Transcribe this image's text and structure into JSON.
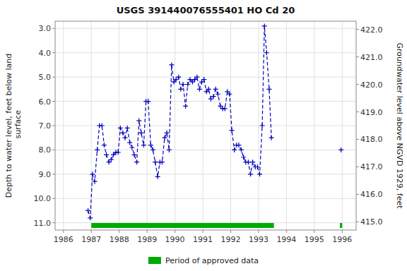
{
  "chart_data": {
    "type": "line",
    "title": "USGS 391440076555401 HO Cd  20",
    "y_label": "Depth to water level, feet below land\n surface",
    "y2_label": "Groundwater level above NGVD 1929, feet",
    "xlim": [
      1985.7,
      1996.5
    ],
    "xticks": [
      1986,
      1987,
      1988,
      1989,
      1990,
      1991,
      1992,
      1993,
      1994,
      1995,
      1996
    ],
    "ylim": [
      11.3,
      2.7
    ],
    "yticks": [
      {
        "value": 3.0,
        "label": "3.0"
      },
      {
        "value": 4.0,
        "label": "4.0"
      },
      {
        "value": 5.0,
        "label": "5.0"
      },
      {
        "value": 6.0,
        "label": "6.0"
      },
      {
        "value": 7.0,
        "label": "7.0"
      },
      {
        "value": 8.0,
        "label": "8.0"
      },
      {
        "value": 9.0,
        "label": "9.0"
      },
      {
        "value": 10.0,
        "label": "10.0"
      },
      {
        "value": 11.0,
        "label": "11.0"
      }
    ],
    "y2lim": [
      414.7,
      422.3
    ],
    "y2ticks": [
      {
        "value": 415.0,
        "label": "415.0"
      },
      {
        "value": 416.0,
        "label": "416.0"
      },
      {
        "value": 417.0,
        "label": "417.0"
      },
      {
        "value": 418.0,
        "label": "418.0"
      },
      {
        "value": 419.0,
        "label": "419.0"
      },
      {
        "value": 420.0,
        "label": "420.0"
      },
      {
        "value": 421.0,
        "label": "421.0"
      },
      {
        "value": 422.0,
        "label": "422.0"
      }
    ],
    "grid": true,
    "legend": "bottom",
    "series": [
      {
        "color": "#0000bb",
        "marker": "plus",
        "line_style": "dashed",
        "x": [
          1986.88,
          1986.96,
          1987.04,
          1987.12,
          1987.21,
          1987.29,
          1987.38,
          1987.46,
          1987.54,
          1987.63,
          1987.71,
          1987.79,
          1987.88,
          1987.96,
          1988.04,
          1988.13,
          1988.21,
          1988.29,
          1988.38,
          1988.46,
          1988.54,
          1988.63,
          1988.71,
          1988.79,
          1988.88,
          1988.96,
          1989.04,
          1989.13,
          1989.21,
          1989.29,
          1989.38,
          1989.46,
          1989.54,
          1989.63,
          1989.71,
          1989.79,
          1989.88,
          1989.96,
          1990.04,
          1990.13,
          1990.21,
          1990.29,
          1990.38,
          1990.46,
          1990.54,
          1990.63,
          1990.71,
          1990.79,
          1990.88,
          1990.96,
          1991.04,
          1991.13,
          1991.21,
          1991.29,
          1991.38,
          1991.46,
          1991.54,
          1991.63,
          1991.71,
          1991.79,
          1991.88,
          1991.96,
          1992.04,
          1992.13,
          1992.21,
          1992.29,
          1992.38,
          1992.46,
          1992.54,
          1992.63,
          1992.71,
          1992.79,
          1992.88,
          1992.96,
          1993.04,
          1993.13,
          1993.21,
          1993.29,
          1993.38,
          1993.46
        ],
        "values": [
          10.5,
          10.8,
          9.0,
          9.3,
          8.0,
          7.0,
          7.0,
          7.8,
          8.2,
          8.5,
          8.4,
          8.2,
          8.1,
          8.1,
          7.1,
          7.3,
          7.5,
          7.1,
          7.7,
          7.9,
          8.2,
          8.5,
          6.8,
          7.3,
          7.8,
          6.0,
          6.0,
          7.8,
          8.0,
          8.5,
          9.1,
          8.5,
          8.5,
          7.5,
          7.3,
          8.0,
          4.5,
          5.2,
          5.1,
          5.0,
          5.5,
          5.3,
          6.2,
          5.3,
          5.1,
          5.2,
          5.1,
          5.0,
          5.5,
          5.2,
          5.1,
          5.6,
          5.5,
          5.9,
          5.8,
          5.5,
          5.7,
          6.2,
          6.3,
          6.3,
          5.6,
          5.7,
          7.2,
          8.0,
          7.8,
          7.8,
          8.0,
          8.3,
          8.5,
          8.5,
          9.0,
          8.5,
          8.7,
          8.7,
          9.0,
          7.0,
          2.9,
          4.0,
          5.5,
          7.5
        ]
      },
      {
        "color": "#0000bb",
        "marker": "plus",
        "line_style": "none",
        "x": [
          1995.96
        ],
        "values": [
          8.0
        ]
      }
    ],
    "periods": {
      "name": "Period of approved data",
      "color": "#00aa00",
      "ranges": [
        [
          1987.0,
          1993.55
        ],
        [
          1995.92,
          1996.0
        ]
      ]
    }
  }
}
